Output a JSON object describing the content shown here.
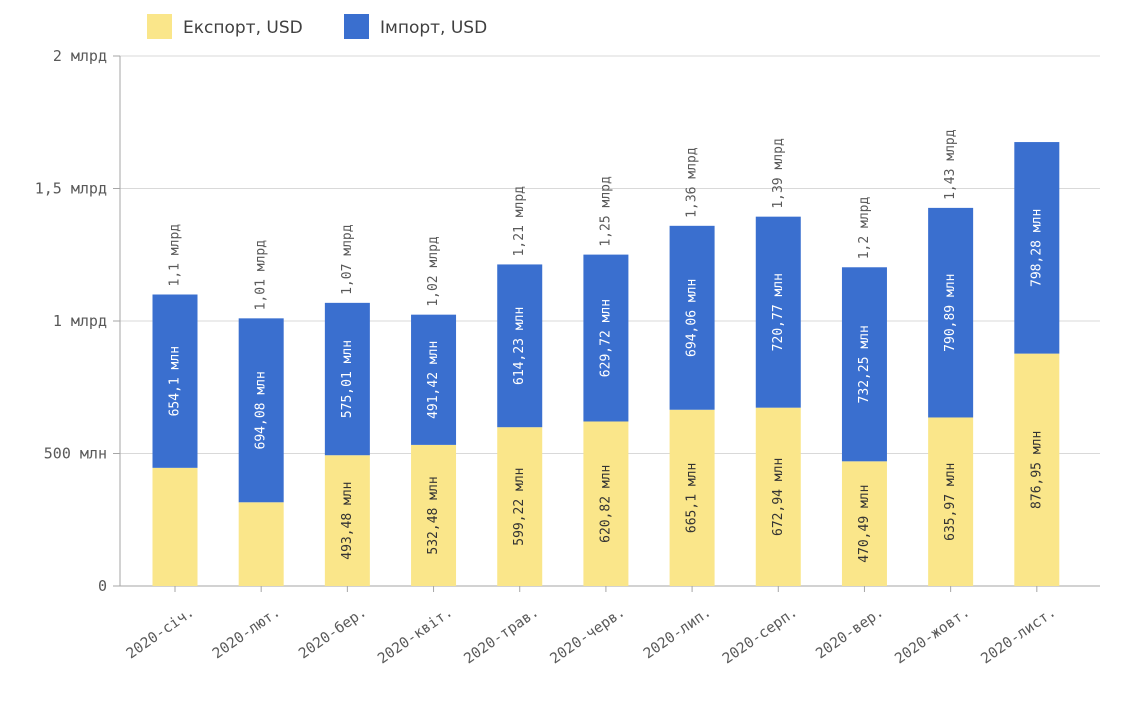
{
  "chart_data": {
    "type": "bar",
    "stacked": true,
    "categories": [
      "2020-січ.",
      "2020-лют.",
      "2020-бер.",
      "2020-квіт.",
      "2020-трав.",
      "2020-черв.",
      "2020-лип.",
      "2020-серп.",
      "2020-вер.",
      "2020-жовт.",
      "2020-лист."
    ],
    "series": [
      {
        "name": "Експорт, USD",
        "color": "#fae68a",
        "values": [
          445900000,
          315920000,
          493480000,
          532480000,
          599220000,
          620820000,
          665100000,
          672940000,
          470490000,
          635970000,
          876950000
        ],
        "labels": [
          "",
          "",
          "493,48 млн",
          "532,48 млн",
          "599,22 млн",
          "620,82 млн",
          "665,1 млн",
          "672,94 млн",
          "470,49 млн",
          "635,97 млн",
          "876,95 млн"
        ]
      },
      {
        "name": "Імпорт, USD",
        "color": "#3a6fcf",
        "values": [
          654100000,
          694080000,
          575010000,
          491420000,
          614230000,
          629720000,
          694060000,
          720770000,
          732250000,
          790890000,
          798280000
        ],
        "labels": [
          "654,1 млн",
          "694,08 млн",
          "575,01 млн",
          "491,42 млн",
          "614,23 млн",
          "629,72 млн",
          "694,06 млн",
          "720,77 млн",
          "732,25 млн",
          "790,89 млн",
          "798,28 млн"
        ]
      }
    ],
    "totals": [
      "1,1 млрд",
      "1,01 млрд",
      "1,07 млрд",
      "1,02 млрд",
      "1,21 млрд",
      "1,25 млрд",
      "1,36 млрд",
      "1,39 млрд",
      "1,2 млрд",
      "1,43 млрд",
      ""
    ],
    "y_ticks": [
      {
        "value": 0,
        "label": "0"
      },
      {
        "value": 500000000,
        "label": "500 млн"
      },
      {
        "value": 1000000000,
        "label": "1 млрд"
      },
      {
        "value": 1500000000,
        "label": "1,5 млрд"
      },
      {
        "value": 2000000000,
        "label": "2 млрд"
      }
    ],
    "ylim": [
      0,
      2000000000
    ],
    "title": "",
    "xlabel": "",
    "ylabel": "",
    "grid": true,
    "legend_position": "top-left"
  }
}
